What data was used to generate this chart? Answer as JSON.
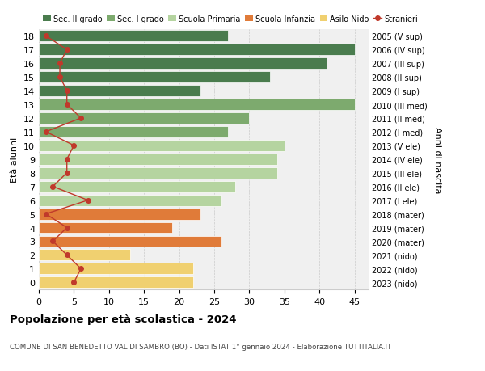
{
  "ages": [
    18,
    17,
    16,
    15,
    14,
    13,
    12,
    11,
    10,
    9,
    8,
    7,
    6,
    5,
    4,
    3,
    2,
    1,
    0
  ],
  "right_labels": [
    "2005 (V sup)",
    "2006 (IV sup)",
    "2007 (III sup)",
    "2008 (II sup)",
    "2009 (I sup)",
    "2010 (III med)",
    "2011 (II med)",
    "2012 (I med)",
    "2013 (V ele)",
    "2014 (IV ele)",
    "2015 (III ele)",
    "2016 (II ele)",
    "2017 (I ele)",
    "2018 (mater)",
    "2019 (mater)",
    "2020 (mater)",
    "2021 (nido)",
    "2022 (nido)",
    "2023 (nido)"
  ],
  "bar_values": [
    27,
    45,
    41,
    33,
    23,
    45,
    30,
    27,
    35,
    34,
    34,
    28,
    26,
    23,
    19,
    26,
    13,
    22,
    22
  ],
  "bar_colors": [
    "#4a7c4e",
    "#4a7c4e",
    "#4a7c4e",
    "#4a7c4e",
    "#4a7c4e",
    "#7daa6e",
    "#7daa6e",
    "#7daa6e",
    "#b5d4a0",
    "#b5d4a0",
    "#b5d4a0",
    "#b5d4a0",
    "#b5d4a0",
    "#e07b39",
    "#e07b39",
    "#e07b39",
    "#f0d070",
    "#f0d070",
    "#f0d070"
  ],
  "stranieri_values": [
    1,
    4,
    3,
    3,
    4,
    4,
    6,
    1,
    5,
    4,
    4,
    2,
    7,
    1,
    4,
    2,
    4,
    6,
    5
  ],
  "xlim": [
    0,
    47
  ],
  "title": "Popolazione per età scolastica - 2024",
  "subtitle": "COMUNE DI SAN BENEDETTO VAL DI SAMBRO (BO) - Dati ISTAT 1° gennaio 2024 - Elaborazione TUTTITALIA.IT",
  "ylabel": "Età alunni",
  "right_ylabel": "Anni di nascita",
  "legend_labels": [
    "Sec. II grado",
    "Sec. I grado",
    "Scuola Primaria",
    "Scuola Infanzia",
    "Asilo Nido",
    "Stranieri"
  ],
  "legend_colors": [
    "#4a7c4e",
    "#7daa6e",
    "#b5d4a0",
    "#e07b39",
    "#f0d070",
    "#c0392b"
  ],
  "stranieri_color": "#c0392b",
  "grid_color": "#cccccc",
  "bg_color": "#f0f0f0"
}
